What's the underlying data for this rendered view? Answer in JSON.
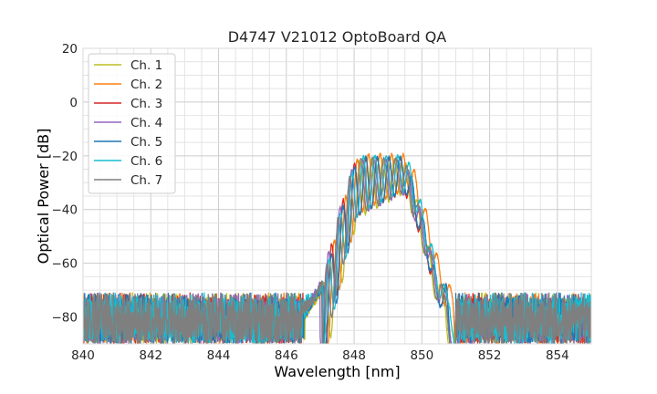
{
  "chart_data": {
    "type": "line",
    "title": "D4747 V21012 OptoBoard QA",
    "xlabel": "Wavelength [nm]",
    "ylabel": "Optical Power [dB]",
    "xlim": [
      840,
      855
    ],
    "ylim": [
      -90,
      20
    ],
    "xticks": [
      "840",
      "842",
      "844",
      "846",
      "848",
      "850",
      "852",
      "854"
    ],
    "yticks": [
      "20",
      "0",
      "−20",
      "−40",
      "−60",
      "−80"
    ],
    "x_tick_values": [
      840,
      842,
      844,
      846,
      848,
      850,
      852,
      854
    ],
    "y_tick_values": [
      20,
      0,
      -20,
      -40,
      -60,
      -80
    ],
    "grid": true,
    "legend_position": "top-left",
    "series": [
      {
        "name": "Ch. 1",
        "color": "#bcbd22",
        "onset": 847.15,
        "offset": 850.95,
        "peak": -21.5,
        "fringe_phase": 0.0
      },
      {
        "name": "Ch. 2",
        "color": "#ff7f0e",
        "onset": 847.1,
        "offset": 851.2,
        "peak": -19.5,
        "fringe_phase": 0.6
      },
      {
        "name": "Ch. 3",
        "color": "#d62728",
        "onset": 847.05,
        "offset": 851.0,
        "peak": -21.0,
        "fringe_phase": 1.2
      },
      {
        "name": "Ch. 4",
        "color": "#9467bd",
        "onset": 847.0,
        "offset": 851.05,
        "peak": -21.5,
        "fringe_phase": 1.9
      },
      {
        "name": "Ch. 5",
        "color": "#1f77b4",
        "onset": 847.12,
        "offset": 851.0,
        "peak": -20.5,
        "fringe_phase": 2.5
      },
      {
        "name": "Ch. 6",
        "color": "#17becf",
        "onset": 847.08,
        "offset": 851.1,
        "peak": -20.0,
        "fringe_phase": 3.1
      },
      {
        "name": "Ch. 7",
        "color": "#7f7f7f",
        "onset": 847.05,
        "offset": 851.0,
        "peak": -21.0,
        "fringe_phase": 3.8
      }
    ],
    "noise_floor": {
      "mean": -82,
      "band_top": -73,
      "band_bottom": -90
    }
  }
}
